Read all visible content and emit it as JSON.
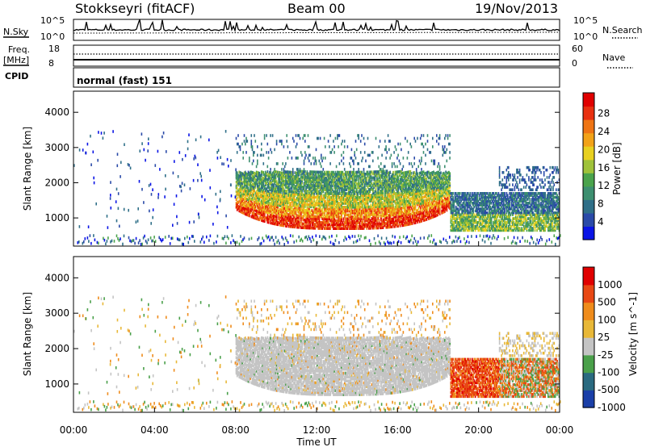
{
  "header": {
    "station": "Stokkseyri (fitACF)",
    "beam": "Beam 00",
    "date": "19/Nov/2013"
  },
  "top_panels": {
    "nsky_label": "N.Sky",
    "nsearch_label": "N.Search",
    "nsky_ticks": [
      "10^5",
      "10^0"
    ],
    "nsearch_ticks": [
      "10^5",
      "10^0"
    ],
    "freq_label_1": "Freq.",
    "freq_label_2": "[MHz]",
    "freq_ticks": [
      "18",
      "8"
    ],
    "nave_label": "Nave",
    "nave_ticks": [
      "60",
      "0"
    ],
    "cpid_label": "CPID",
    "cpid_text": "normal (fast) 151"
  },
  "chart_data": [
    {
      "type": "heatmap",
      "title": "",
      "parameter": "Power",
      "colorbar_label": "Power [dB]",
      "colorbar_ticks": [
        "4",
        "8",
        "12",
        "16",
        "20",
        "24",
        "28"
      ],
      "colorscale": [
        "#0a14e6",
        "#2a4aa8",
        "#2f6f88",
        "#3d8f70",
        "#4aa34c",
        "#9fc23a",
        "#e8d020",
        "#f2a218",
        "#ee7414",
        "#e83010",
        "#e00000"
      ],
      "ylabel": "Slant Range [km]",
      "yticks": [
        1000,
        2000,
        3000,
        4000
      ],
      "ylim": [
        200,
        4600
      ],
      "xlim": [
        "00:00",
        "24:00"
      ],
      "regions": [
        {
          "t": [
            8.0,
            18.5
          ],
          "r": [
            700,
            2300
          ],
          "description": "arc of strong echoes"
        },
        {
          "t": [
            18.5,
            24.0
          ],
          "r": [
            600,
            1800
          ],
          "description": "post-dusk echoes"
        }
      ]
    },
    {
      "type": "heatmap",
      "title": "",
      "parameter": "Velocity",
      "colorbar_label": "Velocity [m s^-1]",
      "colorbar_ticks": [
        "1000",
        "500",
        "100",
        "25",
        "-25",
        "-100",
        "-500",
        "-1000"
      ],
      "colorscale": [
        "#1a3fa8",
        "#2a6a80",
        "#4aa04a",
        "#c4c4c4",
        "#e8b838",
        "#ef8c1c",
        "#e84814",
        "#e00000"
      ],
      "ylabel": "Slant Range [km]",
      "yticks": [
        1000,
        2000,
        3000,
        4000
      ],
      "ylim": [
        200,
        4600
      ],
      "xlim": [
        "00:00",
        "24:00"
      ],
      "xticks": [
        "00:00",
        "04:00",
        "08:00",
        "12:00",
        "16:00",
        "20:00",
        "00:00"
      ],
      "xlabel": "Time UT"
    }
  ]
}
